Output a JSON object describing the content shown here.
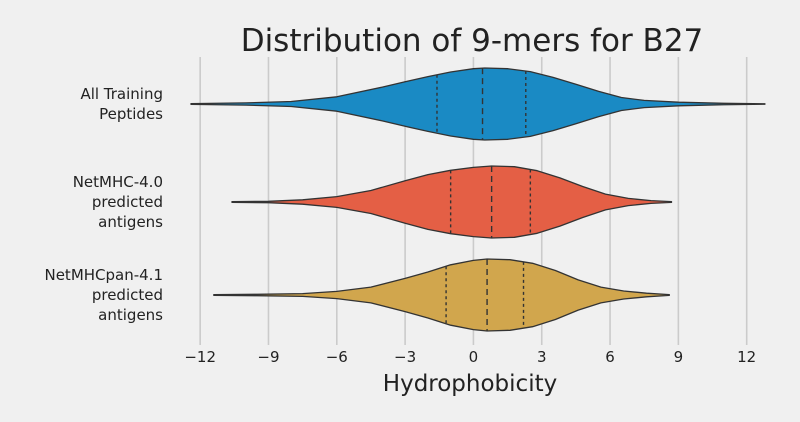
{
  "chart_data": {
    "type": "violin",
    "title": "Distribution of 9-mers for B27",
    "xlabel": "Hydrophobicity",
    "xlim": [
      -13.5,
      13.2
    ],
    "xticks": [
      -12,
      -9,
      -6,
      -3,
      0,
      3,
      6,
      9,
      12
    ],
    "xtick_labels": [
      "−12",
      "−9",
      "−6",
      "−3",
      "0",
      "3",
      "6",
      "9",
      "12"
    ],
    "grid": true,
    "series": [
      {
        "label_lines": [
          "All Training",
          "Peptides"
        ],
        "color": "#1a8ac4",
        "min": -12.4,
        "max": 12.8,
        "q1": -1.6,
        "median": 0.4,
        "q3": 2.3,
        "profile": [
          [
            -12.4,
            0.01
          ],
          [
            -10.0,
            0.03
          ],
          [
            -8.0,
            0.07
          ],
          [
            -6.0,
            0.2
          ],
          [
            -4.0,
            0.47
          ],
          [
            -3.0,
            0.62
          ],
          [
            -2.0,
            0.76
          ],
          [
            -1.0,
            0.89
          ],
          [
            0.0,
            0.98
          ],
          [
            0.5,
            1.0
          ],
          [
            1.5,
            0.98
          ],
          [
            2.5,
            0.9
          ],
          [
            3.5,
            0.74
          ],
          [
            4.5,
            0.55
          ],
          [
            5.5,
            0.35
          ],
          [
            6.5,
            0.18
          ],
          [
            7.5,
            0.1
          ],
          [
            9.0,
            0.05
          ],
          [
            11.0,
            0.02
          ],
          [
            12.8,
            0.005
          ]
        ]
      },
      {
        "label_lines": [
          "NetMHC-4.0",
          "predicted",
          "antigens"
        ],
        "color": "#e45f45",
        "min": -10.6,
        "max": 8.7,
        "q1": -1.0,
        "median": 0.8,
        "q3": 2.5,
        "profile": [
          [
            -10.6,
            0.01
          ],
          [
            -9.0,
            0.02
          ],
          [
            -7.5,
            0.06
          ],
          [
            -6.0,
            0.15
          ],
          [
            -4.5,
            0.32
          ],
          [
            -3.0,
            0.59
          ],
          [
            -2.0,
            0.76
          ],
          [
            -1.0,
            0.88
          ],
          [
            0.0,
            0.96
          ],
          [
            0.8,
            1.0
          ],
          [
            1.8,
            0.98
          ],
          [
            2.8,
            0.87
          ],
          [
            3.8,
            0.67
          ],
          [
            4.8,
            0.43
          ],
          [
            5.8,
            0.22
          ],
          [
            6.8,
            0.1
          ],
          [
            7.8,
            0.04
          ],
          [
            8.7,
            0.01
          ]
        ]
      },
      {
        "label_lines": [
          "NetMHCpan-4.1",
          "predicted",
          "antigens"
        ],
        "color": "#d1a64d",
        "min": -11.4,
        "max": 8.6,
        "q1": -1.2,
        "median": 0.6,
        "q3": 2.2,
        "profile": [
          [
            -11.4,
            0.01
          ],
          [
            -9.5,
            0.02
          ],
          [
            -7.5,
            0.04
          ],
          [
            -6.0,
            0.1
          ],
          [
            -4.5,
            0.22
          ],
          [
            -3.0,
            0.46
          ],
          [
            -2.0,
            0.64
          ],
          [
            -1.0,
            0.84
          ],
          [
            0.0,
            0.96
          ],
          [
            0.6,
            1.0
          ],
          [
            1.6,
            0.98
          ],
          [
            2.6,
            0.88
          ],
          [
            3.6,
            0.68
          ],
          [
            4.6,
            0.42
          ],
          [
            5.6,
            0.22
          ],
          [
            6.6,
            0.11
          ],
          [
            7.6,
            0.05
          ],
          [
            8.6,
            0.01
          ]
        ]
      }
    ]
  }
}
